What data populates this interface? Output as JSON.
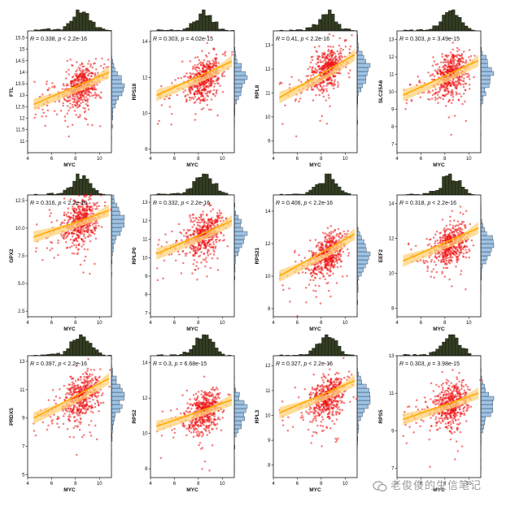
{
  "chart_data": [
    {
      "type": "scatter",
      "xlabel": "MYC",
      "ylabel": "FTL",
      "xlim": [
        4,
        11
      ],
      "ylim": [
        10.5,
        15.8
      ],
      "xticks": [
        4,
        6,
        8,
        10
      ],
      "yticks": [
        11,
        11.5,
        12,
        12.5,
        13,
        13.5,
        14,
        14.5,
        15,
        15.5
      ],
      "x_center": 8.5,
      "y_center": 13.4,
      "regression": {
        "x": [
          4.5,
          10.8
        ],
        "y": [
          12.6,
          14.0
        ]
      },
      "annotation": {
        "r": "0.338",
        "p": "< 2.2e-16"
      }
    },
    {
      "type": "scatter",
      "xlabel": "MYC",
      "ylabel": "RPS18",
      "xlim": [
        4,
        11
      ],
      "ylim": [
        7.8,
        14.6
      ],
      "xticks": [
        4,
        6,
        8,
        10
      ],
      "yticks": [
        8,
        10,
        12,
        14
      ],
      "x_center": 8.5,
      "y_center": 12.0,
      "regression": {
        "x": [
          4.5,
          10.8
        ],
        "y": [
          11.0,
          12.9
        ]
      },
      "annotation": {
        "r": "0.303",
        "p": "= 4.02e-15"
      }
    },
    {
      "type": "scatter",
      "xlabel": "MYC",
      "ylabel": "RPL8",
      "xlim": [
        4,
        11
      ],
      "ylim": [
        8.5,
        13.6
      ],
      "xticks": [
        4,
        6,
        8,
        10
      ],
      "yticks": [
        9,
        10,
        11,
        12,
        13
      ],
      "x_center": 8.5,
      "y_center": 12.0,
      "regression": {
        "x": [
          4.5,
          10.8
        ],
        "y": [
          10.8,
          12.6
        ]
      },
      "annotation": {
        "r": "0.41",
        "p": "< 2.2e-16"
      }
    },
    {
      "type": "scatter",
      "xlabel": "MYC",
      "ylabel": "SLC25A6",
      "xlim": [
        4,
        11
      ],
      "ylim": [
        6.5,
        13.5
      ],
      "xticks": [
        4,
        6,
        8,
        10
      ],
      "yticks": [
        7,
        8,
        9,
        10,
        11,
        12,
        13
      ],
      "x_center": 8.5,
      "y_center": 11.0,
      "regression": {
        "x": [
          4.5,
          10.8
        ],
        "y": [
          9.8,
          11.8
        ]
      },
      "annotation": {
        "r": "0.303",
        "p": "= 3.49e-15"
      }
    },
    {
      "type": "scatter",
      "xlabel": "MYC",
      "ylabel": "GPX2",
      "xlim": [
        4,
        11
      ],
      "ylim": [
        2,
        13
      ],
      "xticks": [
        4,
        6,
        8,
        10
      ],
      "yticks": [
        2.5,
        5.0,
        7.5,
        10.0,
        12.5
      ],
      "ytick_labels": [
        "2.5",
        "5.0",
        "7.5",
        "10.0",
        "12.5"
      ],
      "x_center": 8.5,
      "y_center": 10.5,
      "regression": {
        "x": [
          4.5,
          10.8
        ],
        "y": [
          9.2,
          11.6
        ]
      },
      "annotation": {
        "r": "0.316",
        "p": "< 2.2e-16"
      }
    },
    {
      "type": "scatter",
      "xlabel": "MYC",
      "ylabel": "RPLP0",
      "xlim": [
        4,
        11
      ],
      "ylim": [
        6.8,
        13.4
      ],
      "xticks": [
        4,
        6,
        8,
        10
      ],
      "yticks": [
        7,
        8,
        9,
        10,
        11,
        12,
        13
      ],
      "x_center": 8.5,
      "y_center": 11.3,
      "regression": {
        "x": [
          4.5,
          10.8
        ],
        "y": [
          10.2,
          12.0
        ]
      },
      "annotation": {
        "r": "0.332",
        "p": "< 2.2e-16"
      }
    },
    {
      "type": "scatter",
      "xlabel": "MYC",
      "ylabel": "RPS21",
      "xlim": [
        4,
        11
      ],
      "ylim": [
        7.5,
        15.0
      ],
      "xticks": [
        4,
        6,
        8,
        10
      ],
      "yticks": [
        8,
        10,
        12,
        14
      ],
      "x_center": 8.5,
      "y_center": 11.3,
      "regression": {
        "x": [
          4.5,
          10.8
        ],
        "y": [
          10.0,
          12.6
        ]
      },
      "annotation": {
        "r": "0.406",
        "p": "< 2.2e-16"
      }
    },
    {
      "type": "scatter",
      "xlabel": "MYC",
      "ylabel": "EEF2",
      "xlim": [
        4,
        11
      ],
      "ylim": [
        7.5,
        14.5
      ],
      "xticks": [
        4,
        6,
        8,
        10
      ],
      "yticks": [
        8,
        10,
        12,
        14
      ],
      "x_center": 8.5,
      "y_center": 11.7,
      "regression": {
        "x": [
          4.5,
          10.8
        ],
        "y": [
          10.7,
          12.6
        ]
      },
      "annotation": {
        "r": "0.318",
        "p": "< 2.2e-16"
      }
    },
    {
      "type": "scatter",
      "xlabel": "MYC",
      "ylabel": "PRDX5",
      "xlim": [
        4,
        11
      ],
      "ylim": [
        4.8,
        13.4
      ],
      "xticks": [
        4,
        6,
        8,
        10
      ],
      "yticks": [
        5,
        7,
        9,
        11,
        13
      ],
      "x_center": 8.5,
      "y_center": 10.5,
      "regression": {
        "x": [
          4.5,
          10.8
        ],
        "y": [
          9.0,
          11.8
        ]
      },
      "annotation": {
        "r": "0.397",
        "p": "< 2.2e-16"
      }
    },
    {
      "type": "scatter",
      "xlabel": "MYC",
      "ylabel": "RPS2",
      "xlim": [
        4,
        11
      ],
      "ylim": [
        7.5,
        14.4
      ],
      "xticks": [
        4,
        6,
        8,
        10
      ],
      "yticks": [
        8,
        10,
        12,
        14
      ],
      "x_center": 8.5,
      "y_center": 11.3,
      "regression": {
        "x": [
          4.5,
          10.8
        ],
        "y": [
          10.4,
          11.9
        ]
      },
      "annotation": {
        "r": "0.3",
        "p": "= 6.68e-15"
      }
    },
    {
      "type": "scatter",
      "xlabel": "MYC",
      "ylabel": "RPL3",
      "xlim": [
        4,
        11
      ],
      "ylim": [
        7.5,
        12.4
      ],
      "xticks": [
        4,
        6,
        8,
        10
      ],
      "yticks": [
        8,
        9,
        10,
        11,
        12
      ],
      "x_center": 8.5,
      "y_center": 10.7,
      "regression": {
        "x": [
          4.5,
          10.8
        ],
        "y": [
          10.1,
          11.4
        ]
      },
      "annotation": {
        "r": "0.327",
        "p": "< 2.2e-16"
      }
    },
    {
      "type": "scatter",
      "xlabel": "MYC",
      "ylabel": "RPS5",
      "xlim": [
        4,
        11
      ],
      "ylim": [
        6.5,
        13.0
      ],
      "xticks": [
        4,
        6,
        8,
        10
      ],
      "yticks": [
        7,
        9,
        11,
        13
      ],
      "x_center": 8.5,
      "y_center": 10.4,
      "regression": {
        "x": [
          4.5,
          10.8
        ],
        "y": [
          9.6,
          11.0
        ]
      },
      "annotation": {
        "r": "0.303",
        "p": "= 3.98e-15"
      }
    }
  ],
  "style": {
    "point_color": "#ee1111",
    "line_color": "#ffaa00",
    "band_color": "#ffd27a",
    "hist_x_color": "#333d22",
    "hist_y_color": "#9ec3e6"
  },
  "watermark": {
    "text": "老俊俊的生信笔记",
    "icon": "wechat-icon"
  }
}
